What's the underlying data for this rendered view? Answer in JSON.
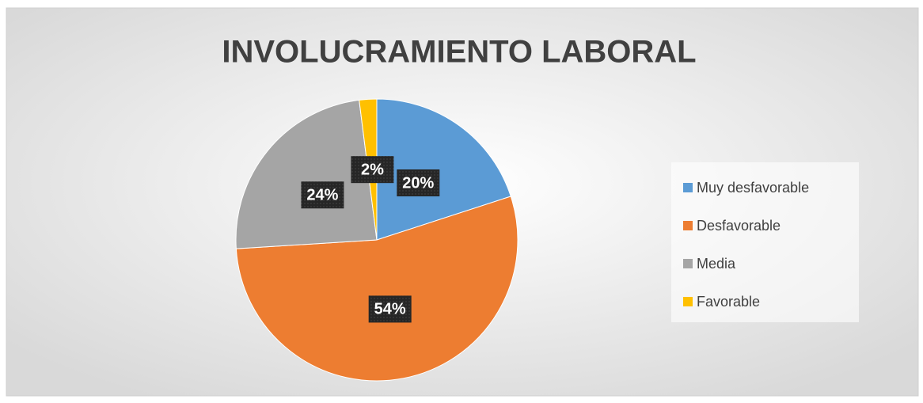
{
  "chart_data": {
    "type": "pie",
    "title": "INVOLUCRAMIENTO LABORAL",
    "categories": [
      "Muy desfavorable",
      "Desfavorable",
      "Media",
      "Favorable"
    ],
    "values": [
      20,
      54,
      24,
      2
    ],
    "value_labels": [
      "20%",
      "54%",
      "24%",
      "2%"
    ],
    "colors": [
      "#5b9bd5",
      "#ed7d31",
      "#a5a5a5",
      "#ffc000"
    ],
    "legend": "right"
  }
}
